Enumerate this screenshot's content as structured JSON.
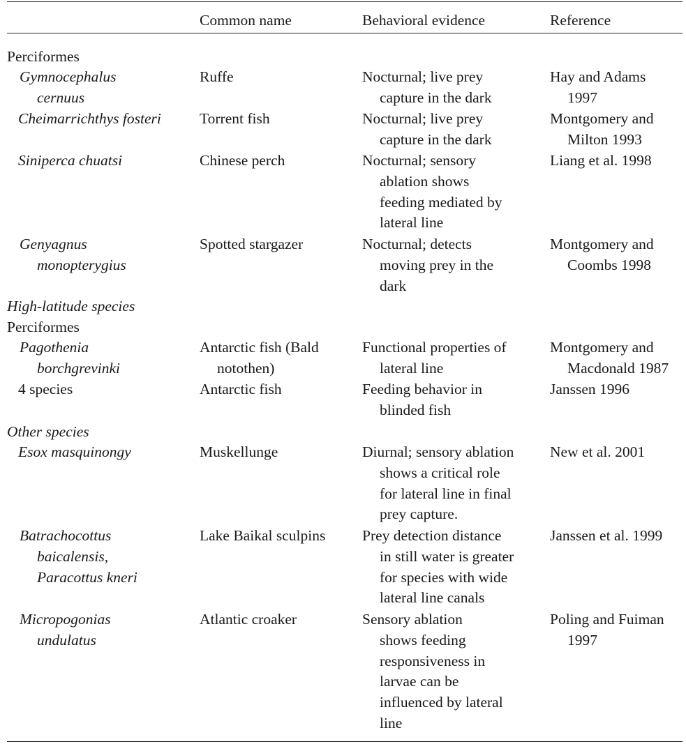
{
  "table": {
    "headers": {
      "taxon": "",
      "common_name": "Common name",
      "behavioral_evidence": "Behavioral evidence",
      "reference": "Reference"
    },
    "section_labels": {
      "perciformes_1": "Perciformes",
      "high_latitude": "High-latitude species",
      "perciformes_2": "Perciformes",
      "other_species": "Other species"
    },
    "rows": [
      {
        "taxon": [
          "Gymnocephalus",
          "cernuus"
        ],
        "common_name": [
          "Ruffe"
        ],
        "evidence": [
          "Nocturnal; live prey",
          "capture in the dark"
        ],
        "reference": [
          "Hay and Adams",
          "1997"
        ]
      },
      {
        "taxon": [
          "Cheimarrichthys fosteri"
        ],
        "common_name": [
          "Torrent fish"
        ],
        "evidence": [
          "Nocturnal; live prey",
          "capture in the dark"
        ],
        "reference": [
          "Montgomery and",
          "Milton 1993"
        ]
      },
      {
        "taxon": [
          "Siniperca chuatsi"
        ],
        "common_name": [
          "Chinese perch"
        ],
        "evidence": [
          "Nocturnal; sensory",
          "ablation shows",
          "feeding mediated by",
          "lateral line"
        ],
        "reference": [
          "Liang et al. 1998"
        ]
      },
      {
        "taxon": [
          "Genyagnus",
          "monopterygius"
        ],
        "common_name": [
          "Spotted stargazer"
        ],
        "evidence": [
          "Nocturnal; detects",
          "moving prey in the",
          "dark"
        ],
        "reference": [
          "Montgomery and",
          "Coombs 1998"
        ]
      },
      {
        "taxon": [
          "Pagothenia",
          "borchgrevinki"
        ],
        "common_name": [
          "Antarctic fish (Bald",
          "notothen)"
        ],
        "evidence": [
          "Functional properties of",
          "lateral line"
        ],
        "reference": [
          "Montgomery and",
          "Macdonald 1987"
        ]
      },
      {
        "taxon": [
          "4 species"
        ],
        "common_name": [
          "Antarctic fish"
        ],
        "evidence": [
          "Feeding behavior in",
          "blinded fish"
        ],
        "reference": [
          "Janssen 1996"
        ]
      },
      {
        "taxon": [
          "Esox masquinongy"
        ],
        "common_name": [
          "Muskellunge"
        ],
        "evidence": [
          "Diurnal; sensory ablation",
          "shows a critical role",
          "for lateral line in final",
          "prey capture."
        ],
        "reference": [
          "New et al. 2001"
        ]
      },
      {
        "taxon": [
          "Batrachocottus",
          "baicalensis,",
          "Paracottus kneri"
        ],
        "common_name": [
          "Lake Baikal sculpins"
        ],
        "evidence": [
          "Prey detection distance",
          "in still water is greater",
          "for species with wide",
          "lateral line canals"
        ],
        "reference": [
          "Janssen et al. 1999"
        ]
      },
      {
        "taxon": [
          "Micropogonias",
          "undulatus"
        ],
        "common_name": [
          "Atlantic croaker"
        ],
        "evidence": [
          "Sensory ablation",
          "shows feeding",
          "responsiveness in",
          "larvae can be",
          "influenced by lateral",
          "line"
        ],
        "reference": [
          "Poling and Fuiman",
          "1997"
        ]
      }
    ]
  }
}
